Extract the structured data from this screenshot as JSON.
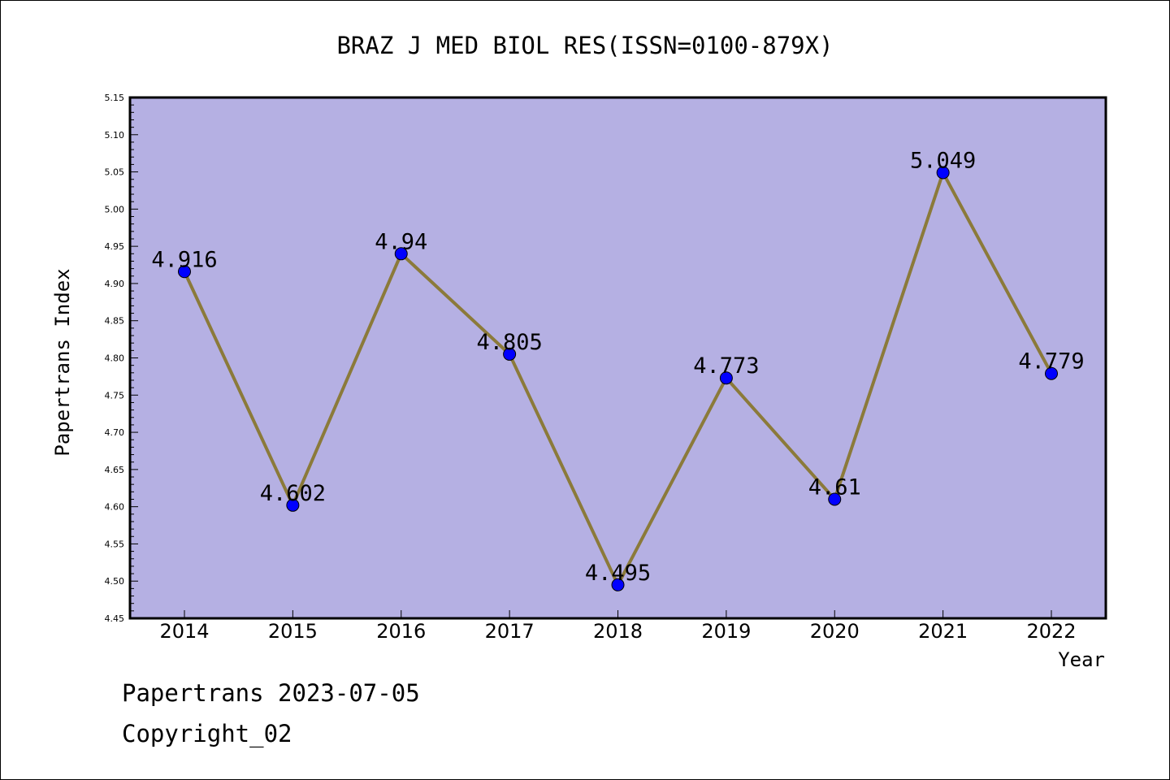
{
  "chart_data": {
    "type": "line",
    "title": "BRAZ J MED BIOL RES(ISSN=0100-879X)",
    "xlabel": "Year",
    "ylabel": "Papertrans Index",
    "categories": [
      "2014",
      "2015",
      "2016",
      "2017",
      "2018",
      "2019",
      "2020",
      "2021",
      "2022"
    ],
    "series": [
      {
        "values": [
          4.916,
          4.602,
          4.94,
          4.805,
          4.495,
          4.773,
          4.61,
          5.049,
          4.779
        ]
      }
    ],
    "data_labels": [
      "4.916",
      "4.602",
      "4.94",
      "4.805",
      "4.495",
      "4.773",
      "4.61",
      "5.049",
      "4.779"
    ],
    "ylim": [
      4.45,
      5.15
    ],
    "yticks": [
      "4.45",
      "4.50",
      "4.55",
      "4.60",
      "4.65",
      "4.70",
      "4.75",
      "4.80",
      "4.85",
      "4.90",
      "4.95",
      "5.00",
      "5.05",
      "5.10",
      "5.15"
    ],
    "grid": false,
    "colors": {
      "plot_background": "#b5b0e3",
      "line": "#8b7a3a",
      "marker": "#0000ff"
    }
  },
  "footer": {
    "source": "Papertrans 2023-07-05",
    "copyright": "Copyright_02"
  }
}
